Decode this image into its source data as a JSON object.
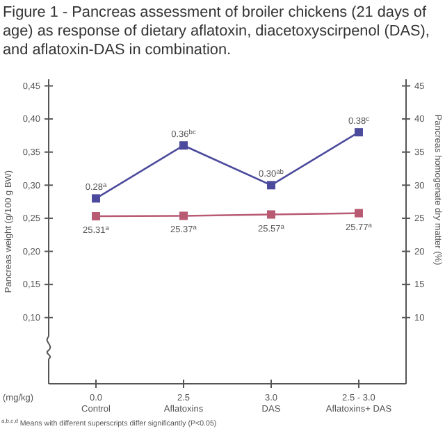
{
  "chart_data": {
    "type": "line",
    "title": "Figure 1 - Pancreas assessment of broiler chickens (21 days of age) as response of dietary aflatoxin, diacetoxyscirpenol (DAS), and aflatoxin-DAS in combination.",
    "ylabel": "Pancreas weight (g/100 g BW)",
    "y2label": "Pancreas homogenate dry matter (%)",
    "categories": [
      "0.0\nControl",
      "2.5\nAflatoxins",
      "3.0\nDAS",
      "2.5 - 3.0\nAflatoxins+ DAS"
    ],
    "series": [
      {
        "color": "#4b4a9c",
        "values": [
          0.28,
          0.36,
          0.3,
          0.38
        ],
        "value_labels": [
          "0.28$^{a}$",
          "0.36$^{bc}$",
          "0.30$^{ab}$",
          "0.38$^{c}$"
        ]
      },
      {
        "color": "#b85a72",
        "axis": "y2",
        "values": [
          25.31,
          25.37,
          25.57,
          25.77
        ],
        "value_labels": [
          "25.31$^{a}$",
          "25.37$^{a}$",
          "25.57$^{a}$",
          "25.77$^{a}$"
        ]
      }
    ],
    "ylim": [
      0,
      0.46
    ],
    "yticks": [
      {
        "value": 0.1,
        "label": "0,10"
      },
      {
        "value": 0.15,
        "label": "0,15"
      },
      {
        "value": 0.2,
        "label": "0,20"
      },
      {
        "value": 0.25,
        "label": "0,25"
      },
      {
        "value": 0.3,
        "label": "0,30"
      },
      {
        "value": 0.35,
        "label": "0,35"
      },
      {
        "value": 0.4,
        "label": "0,40"
      },
      {
        "value": 0.45,
        "label": "0,45"
      }
    ],
    "y2lim": [
      0,
      46
    ],
    "y2ticks": [
      10,
      15,
      20,
      25,
      30,
      35,
      40,
      45
    ],
    "marker": "square",
    "line_style": "solid",
    "annotations": [
      "(mg/kg)",
      "$^{a,b,c,d}$ Means with different superscripts differ significantly (P<0.05)"
    ]
  }
}
